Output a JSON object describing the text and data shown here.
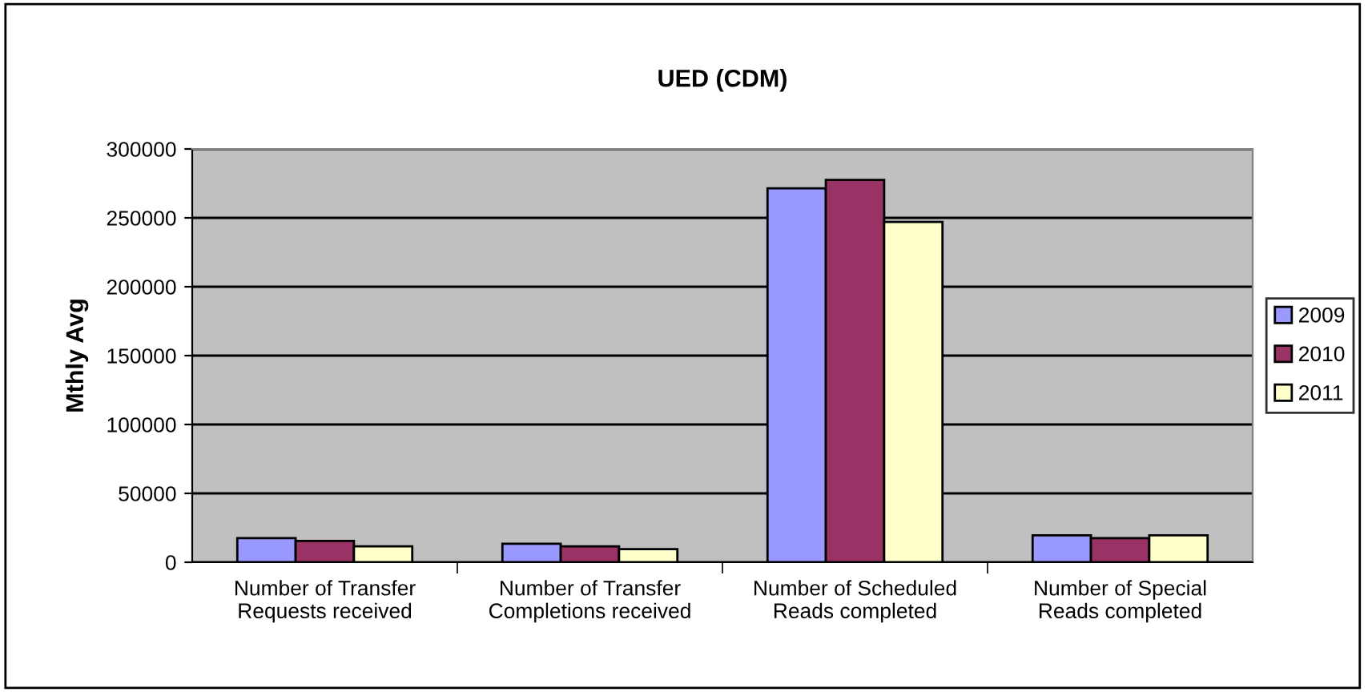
{
  "chart_data": {
    "type": "bar",
    "title": "UED (CDM)",
    "ylabel": "Mthly Avg",
    "categories": [
      "Number of Transfer\nRequests received",
      "Number of Transfer\nCompletions received",
      "Number of Scheduled\nReads completed",
      "Number of Special\nReads completed"
    ],
    "series": [
      {
        "name": "2009",
        "color": "#9999ff",
        "values": [
          17500,
          13500,
          271500,
          19500
        ]
      },
      {
        "name": "2010",
        "color": "#993366",
        "values": [
          15500,
          11500,
          277500,
          17500
        ]
      },
      {
        "name": "2011",
        "color": "#ffffcc",
        "values": [
          11500,
          9500,
          247000,
          19500
        ]
      }
    ],
    "ylim": [
      0,
      300000
    ],
    "yticks": [
      0,
      50000,
      100000,
      150000,
      200000,
      250000,
      300000
    ],
    "grid": "y",
    "legend": "right"
  }
}
